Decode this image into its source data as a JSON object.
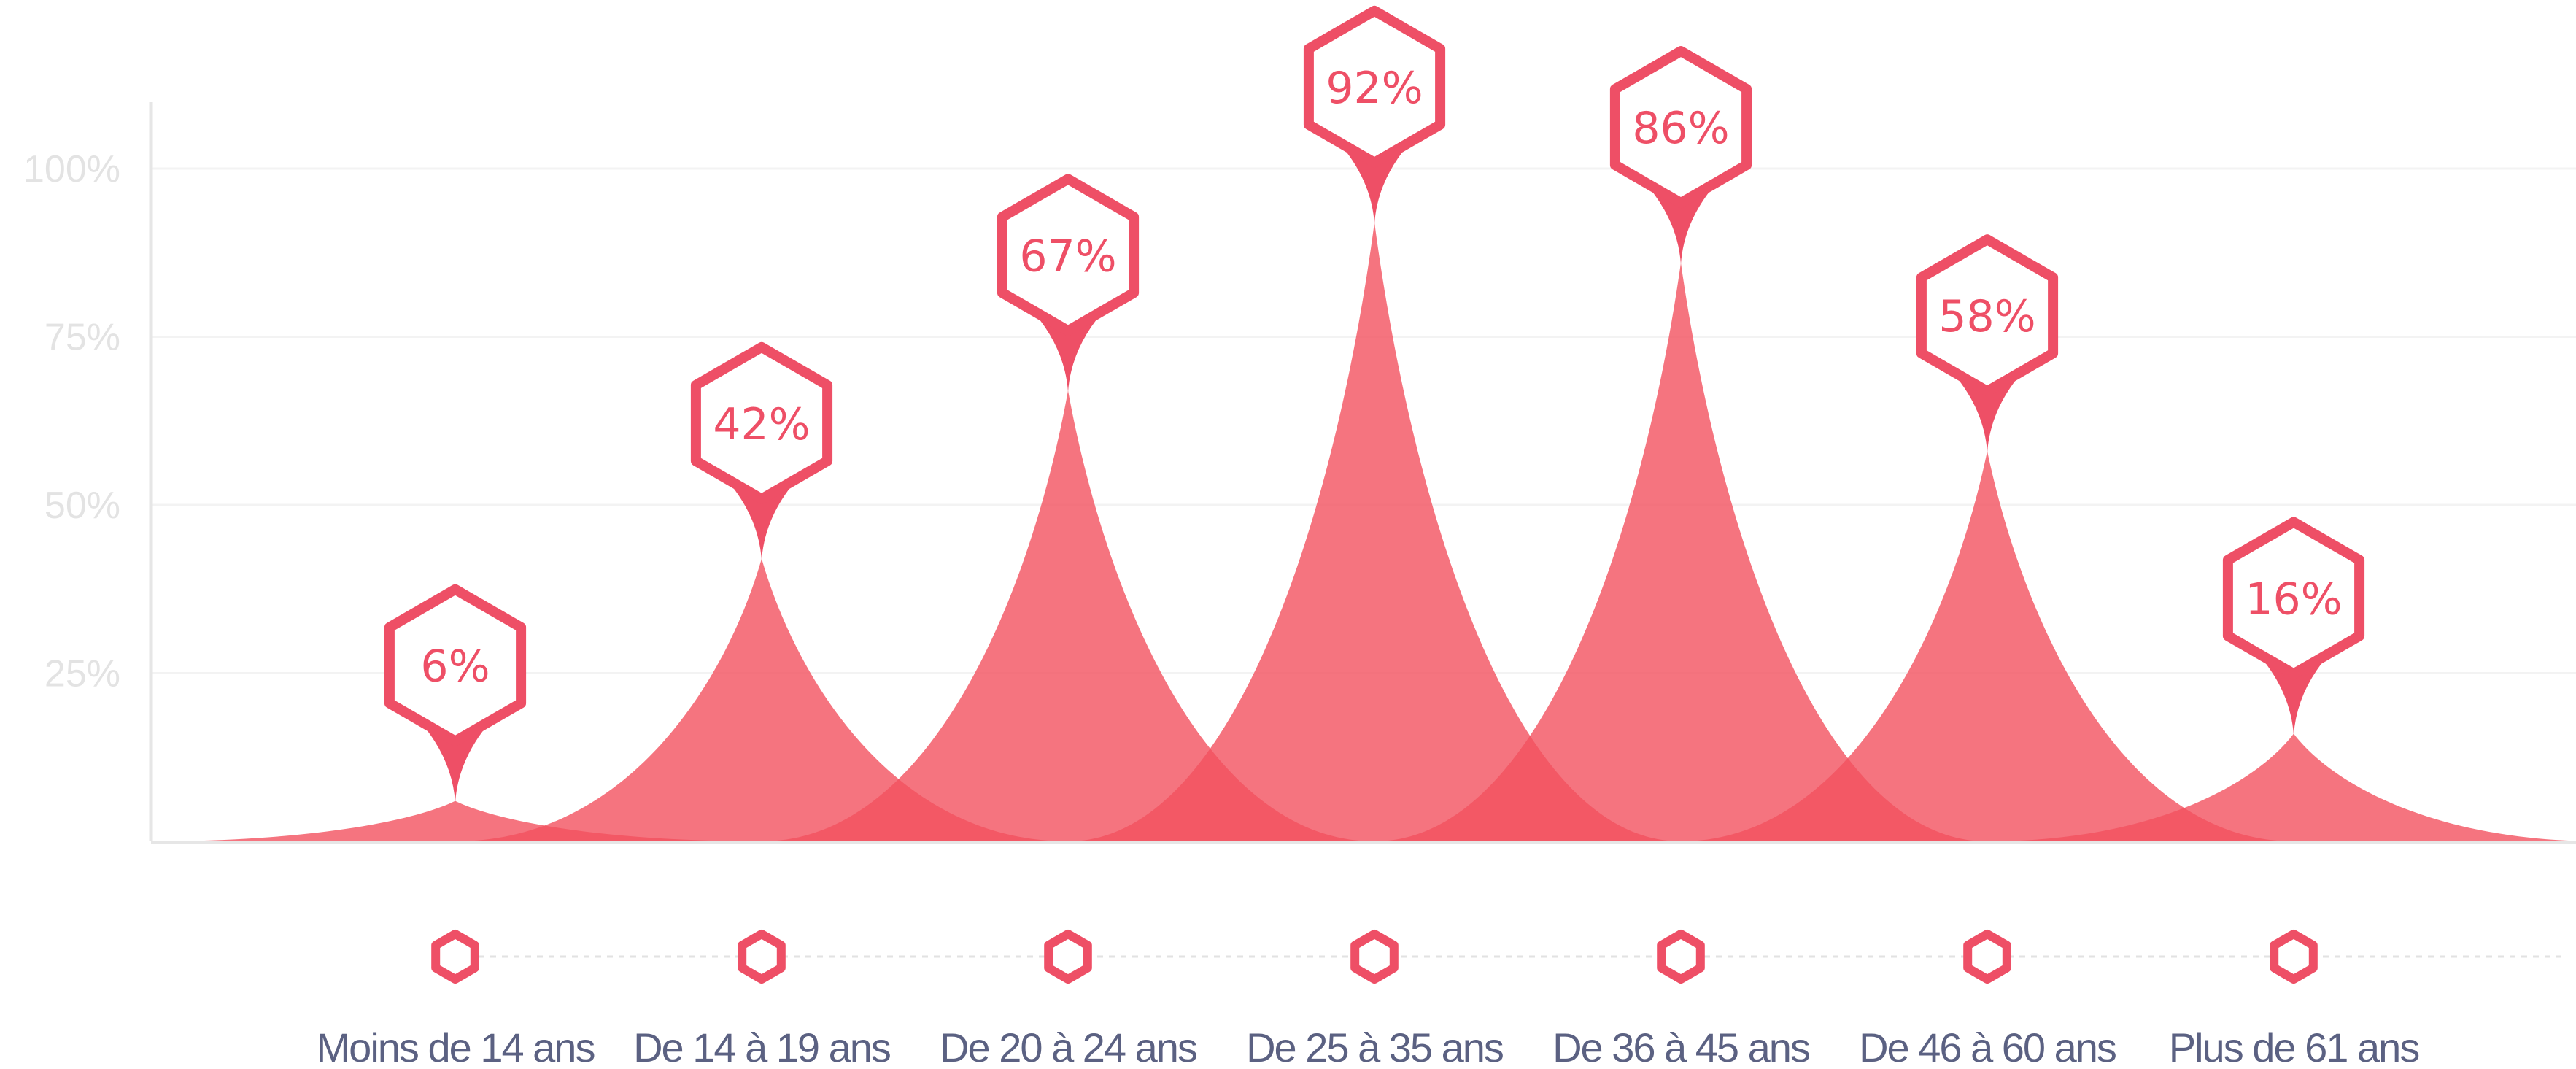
{
  "chart_data": {
    "type": "area",
    "categories": [
      "Moins de 14 ans",
      "De 14 à 19 ans",
      "De 20 à 24 ans",
      "De 25 à 35 ans",
      "De 36 à 45 ans",
      "De 46 à 60 ans",
      "Plus de 61 ans"
    ],
    "values": [
      6,
      42,
      67,
      92,
      86,
      58,
      16
    ],
    "value_labels": [
      "6%",
      "42%",
      "67%",
      "92%",
      "86%",
      "58%",
      "16%"
    ],
    "yticks": [
      "100%",
      "75%",
      "50%",
      "25%"
    ],
    "ytick_values": [
      100,
      75,
      50,
      25
    ],
    "ylim": [
      0,
      110
    ],
    "grid": true,
    "colors": {
      "fill": "#f2515f",
      "badge": "#ee4f66",
      "grid": "#f3f3f3",
      "axis": "#e6e6e6",
      "tick_label": "#e3e3e3",
      "category_label": "#5b6182",
      "percent_accent": "#f08a5a"
    }
  }
}
